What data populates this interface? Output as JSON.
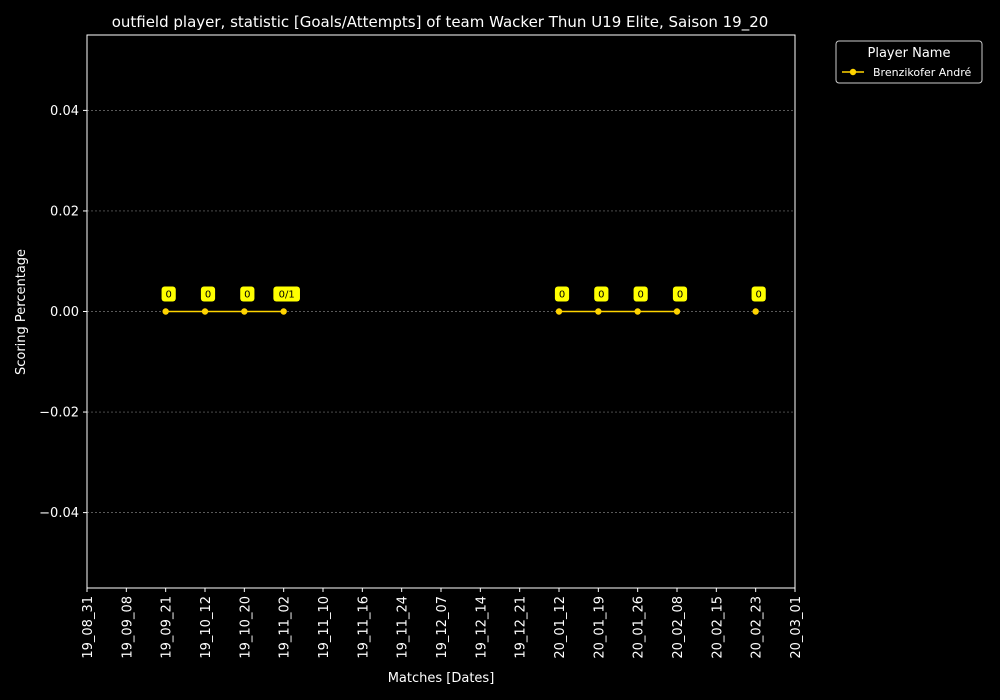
{
  "chart_data": {
    "type": "line",
    "title": "outfield player, statistic [Goals/Attempts] of team Wacker Thun U19 Elite, Saison 19_20",
    "xlabel": "Matches [Dates]",
    "ylabel": "Scoring Percentage",
    "x_ticks": [
      "19_08_31",
      "19_09_08",
      "19_09_21",
      "19_10_12",
      "19_10_20",
      "19_11_02",
      "19_11_10",
      "19_11_16",
      "19_11_24",
      "19_12_07",
      "19_12_14",
      "19_12_21",
      "20_01_12",
      "20_01_19",
      "20_01_26",
      "20_02_08",
      "20_02_15",
      "20_02_23",
      "20_03_01"
    ],
    "ylim": [
      -0.055,
      0.055
    ],
    "y_ticks": [
      -0.04,
      -0.02,
      0.0,
      0.02,
      0.04
    ],
    "y_tick_labels": [
      "−0.04",
      "−0.02",
      "0.00",
      "0.02",
      "0.04"
    ],
    "grid": "y-dashed",
    "legend": {
      "title": "Player Name",
      "placement": "outside-top-right"
    },
    "series": [
      {
        "name": "Brenzikofer André",
        "color": "#ffd400",
        "label_bg": "#ffff00",
        "segments": [
          [
            {
              "x": "19_09_21",
              "y": 0.0,
              "label": "0"
            },
            {
              "x": "19_10_12",
              "y": 0.0,
              "label": "0"
            },
            {
              "x": "19_10_20",
              "y": 0.0,
              "label": "0"
            },
            {
              "x": "19_11_02",
              "y": 0.0,
              "label": "0/1"
            }
          ],
          [
            {
              "x": "20_01_12",
              "y": 0.0,
              "label": "0"
            },
            {
              "x": "20_01_19",
              "y": 0.0,
              "label": "0"
            },
            {
              "x": "20_01_26",
              "y": 0.0,
              "label": "0"
            },
            {
              "x": "20_02_08",
              "y": 0.0,
              "label": "0"
            }
          ],
          [
            {
              "x": "20_02_23",
              "y": 0.0,
              "label": "0"
            }
          ]
        ]
      }
    ]
  }
}
